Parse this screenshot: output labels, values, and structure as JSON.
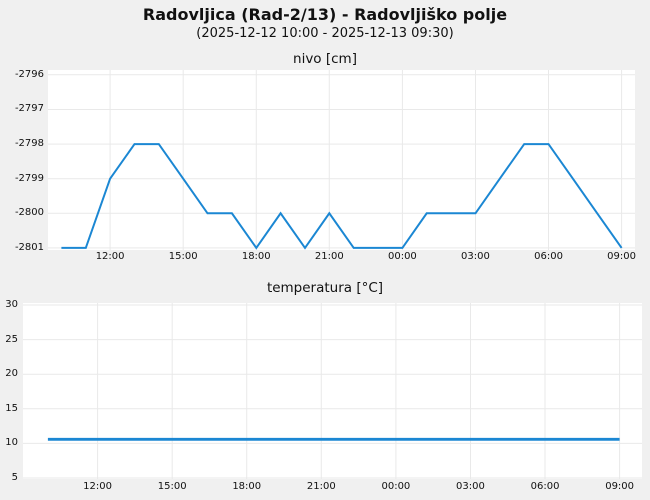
{
  "header": {
    "title": "Radovljica (Rad-2/13) - Radovljiško polje",
    "subtitle": "(2025-12-12 10:00 - 2025-12-13 09:30)"
  },
  "colors": {
    "line": "#1b87d3",
    "figure_bg": "#f0f0f0",
    "plot_bg": "#ffffff",
    "grid": "#e9e9e9",
    "text": "#111111"
  },
  "chart_data": [
    {
      "type": "line",
      "name": "nivo",
      "title": "nivo [cm]",
      "xlabel": "",
      "ylabel": "nivo [cm]",
      "grid": true,
      "legend": "none",
      "x_tick_labels": [
        "12:00",
        "15:00",
        "18:00",
        "21:00",
        "00:00",
        "03:00",
        "06:00",
        "09:00"
      ],
      "x_ticks_hours": [
        12,
        15,
        18,
        21,
        24,
        27,
        30,
        33
      ],
      "y_ticks": [
        -2796,
        -2797,
        -2798,
        -2799,
        -2800,
        -2801
      ],
      "xlim_hours": [
        9.45,
        33.55
      ],
      "ylim": [
        -2801.06,
        -2795.86
      ],
      "times": [
        "10:00",
        "11:00",
        "12:00",
        "13:00",
        "14:00",
        "15:00",
        "16:00",
        "17:00",
        "18:00",
        "19:00",
        "20:00",
        "21:00",
        "22:00",
        "23:00",
        "00:00",
        "01:00",
        "02:00",
        "03:00",
        "04:00",
        "05:00",
        "06:00",
        "07:00",
        "08:00",
        "09:00"
      ],
      "x_hours": [
        10,
        11,
        12,
        13,
        14,
        15,
        16,
        17,
        18,
        19,
        20,
        21,
        22,
        23,
        24,
        25,
        26,
        27,
        28,
        29,
        30,
        31,
        32,
        33
      ],
      "values": [
        -2801,
        -2801,
        -2799,
        -2798,
        -2798,
        -2799,
        -2800,
        -2800,
        -2801,
        -2800,
        -2801,
        -2800,
        -2801,
        -2801,
        -2801,
        -2800,
        -2800,
        -2800,
        -2799,
        -2798,
        -2798,
        -2799,
        -2800,
        -2801
      ]
    },
    {
      "type": "line",
      "name": "temperatura",
      "title": "temperatura [°C]",
      "xlabel": "",
      "ylabel": "temperatura [°C]",
      "grid": true,
      "legend": "none",
      "x_tick_labels": [
        "12:00",
        "15:00",
        "18:00",
        "21:00",
        "00:00",
        "03:00",
        "06:00",
        "09:00"
      ],
      "x_ticks_hours": [
        12,
        15,
        18,
        21,
        24,
        27,
        30,
        33
      ],
      "y_ticks": [
        30,
        25,
        20,
        15,
        10,
        5
      ],
      "xlim_hours": [
        9.0,
        33.9
      ],
      "ylim": [
        4.86,
        30.29
      ],
      "times": [
        "10:00",
        "11:00",
        "12:00",
        "13:00",
        "14:00",
        "15:00",
        "16:00",
        "17:00",
        "18:00",
        "19:00",
        "20:00",
        "21:00",
        "22:00",
        "23:00",
        "00:00",
        "01:00",
        "02:00",
        "03:00",
        "04:00",
        "05:00",
        "06:00",
        "07:00",
        "08:00",
        "09:00"
      ],
      "x_hours": [
        10,
        11,
        12,
        13,
        14,
        15,
        16,
        17,
        18,
        19,
        20,
        21,
        22,
        23,
        24,
        25,
        26,
        27,
        28,
        29,
        30,
        31,
        32,
        33
      ],
      "values": [
        10.6,
        10.6,
        10.6,
        10.6,
        10.6,
        10.6,
        10.6,
        10.6,
        10.6,
        10.6,
        10.6,
        10.6,
        10.6,
        10.6,
        10.6,
        10.6,
        10.6,
        10.6,
        10.6,
        10.6,
        10.6,
        10.6,
        10.6,
        10.6
      ]
    }
  ]
}
